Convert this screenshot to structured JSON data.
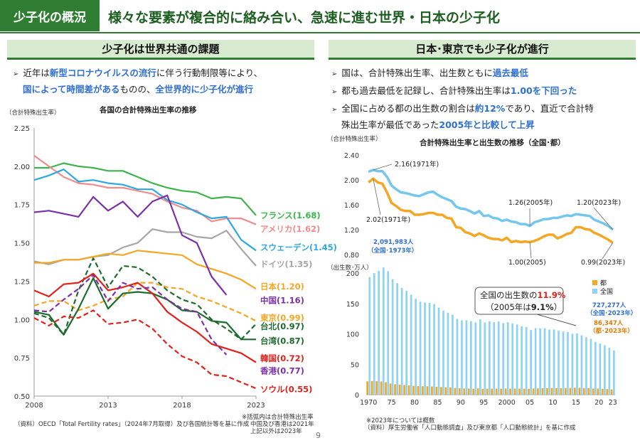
{
  "header": {
    "badge": "少子化の概況",
    "title": "様々な要素が複合的に絡み合い、急速に進む世界・日本の少子化"
  },
  "left": {
    "section_title": "少子化は世界共通の課題",
    "bullet_line1_pre": "近年は",
    "bullet_line1_hl": "新型コロナウイルスの流行",
    "bullet_line1_post": "に伴う行動制限等により、",
    "bullet_line2_hl1": "国によって時間差がある",
    "bullet_line2_mid": "ものの、",
    "bullet_line2_hl2": "全世界的に少子化が進行",
    "source": "（資料）OECD「Total Fertility rates」（2024年7月取得）及び各国統計等を基に作成",
    "note1": "※括弧内は合計特殊出生率",
    "note2": "中国及び香港は2021年",
    "note3": "上記以外は2023年"
  },
  "right": {
    "section_title": "日本･東京でも少子化が進行",
    "b1_pre": "国は、合計特殊出生率、出生数ともに",
    "b1_hl": "過去最低",
    "b2_pre": "都も過去最低を記録し、合計特殊出生率は",
    "b2_hl": "1.00を下回った",
    "b3_pre": "全国に占める都の出生数の割合は",
    "b3_hl": "約12%",
    "b3_post": "であり、直近で合計特",
    "b3_line2_pre": "殊出生率が最低であった",
    "b3_line2_hl": "2005年と比較して上昇",
    "source1": "※2023年については概数",
    "source2": "（資料）厚生労働省「人口動態調査」及び東京都「人口動態統計」を基に作成"
  },
  "page_number": "9",
  "chart_data": [
    {
      "type": "line",
      "title": "各国の合計特殊出生率の推移",
      "ylabel": "（合計特殊出生率）",
      "ylim": [
        0.5,
        2.25
      ],
      "yticks": [
        "0.50",
        "0.75",
        "1.00",
        "1.25",
        "1.50",
        "1.75",
        "2.00",
        "2.25"
      ],
      "xlim": [
        2008,
        2023
      ],
      "xticks": [
        "2008",
        "2013",
        "2018",
        "2023"
      ],
      "series": [
        {
          "name": "フランス",
          "label": "フランス(1.68)",
          "color": "#3cb44b",
          "dash": false,
          "x": [
            2008,
            2009,
            2010,
            2011,
            2012,
            2013,
            2014,
            2015,
            2016,
            2017,
            2018,
            2019,
            2020,
            2021,
            2022,
            2023
          ],
          "values": [
            1.99,
            1.99,
            2.02,
            2.0,
            1.99,
            1.97,
            1.97,
            1.93,
            1.89,
            1.86,
            1.84,
            1.83,
            1.79,
            1.8,
            1.79,
            1.68
          ]
        },
        {
          "name": "アメリカ",
          "label": "アメリカ(1.62)",
          "color": "#f08c8c",
          "dash": false,
          "x": [
            2008,
            2009,
            2010,
            2011,
            2012,
            2013,
            2014,
            2015,
            2016,
            2017,
            2018,
            2019,
            2020,
            2021,
            2022,
            2023
          ],
          "values": [
            2.07,
            2.0,
            1.93,
            1.89,
            1.88,
            1.86,
            1.86,
            1.84,
            1.82,
            1.77,
            1.73,
            1.71,
            1.64,
            1.66,
            1.66,
            1.62
          ]
        },
        {
          "name": "スウェーデン",
          "label": "スウェーデン(1.45)",
          "color": "#2ea8e0",
          "dash": false,
          "x": [
            2008,
            2009,
            2010,
            2011,
            2012,
            2013,
            2014,
            2015,
            2016,
            2017,
            2018,
            2019,
            2020,
            2021,
            2022,
            2023
          ],
          "values": [
            1.91,
            1.94,
            1.98,
            1.9,
            1.91,
            1.89,
            1.88,
            1.85,
            1.85,
            1.78,
            1.75,
            1.7,
            1.66,
            1.67,
            1.52,
            1.45
          ]
        },
        {
          "name": "ドイツ",
          "label": "ドイツ(1.35)",
          "color": "#a6a6a6",
          "dash": false,
          "x": [
            2008,
            2009,
            2010,
            2011,
            2012,
            2013,
            2014,
            2015,
            2016,
            2017,
            2018,
            2019,
            2020,
            2021,
            2022,
            2023
          ],
          "values": [
            1.38,
            1.36,
            1.39,
            1.39,
            1.41,
            1.42,
            1.47,
            1.5,
            1.59,
            1.57,
            1.57,
            1.54,
            1.53,
            1.58,
            1.46,
            1.35
          ]
        },
        {
          "name": "日本",
          "label": "日本(1.20)",
          "color": "#f5a623",
          "dash": false,
          "x": [
            2008,
            2009,
            2010,
            2011,
            2012,
            2013,
            2014,
            2015,
            2016,
            2017,
            2018,
            2019,
            2020,
            2021,
            2022,
            2023
          ],
          "values": [
            1.37,
            1.37,
            1.39,
            1.39,
            1.41,
            1.43,
            1.42,
            1.45,
            1.44,
            1.43,
            1.42,
            1.36,
            1.33,
            1.3,
            1.26,
            1.2
          ]
        },
        {
          "name": "中国",
          "label": "中国(1.16)",
          "color": "#7b2fa8",
          "dash": false,
          "x": [
            2008,
            2009,
            2010,
            2011,
            2012,
            2013,
            2014,
            2015,
            2016,
            2017,
            2018,
            2019,
            2020,
            2021
          ],
          "values": [
            1.7,
            1.71,
            1.69,
            1.67,
            1.8,
            1.71,
            1.77,
            1.67,
            1.77,
            1.81,
            1.55,
            1.5,
            1.28,
            1.16
          ]
        },
        {
          "name": "東京",
          "label": "東京(0.99)",
          "color": "#f5a623",
          "dash": true,
          "x": [
            2008,
            2009,
            2010,
            2011,
            2012,
            2013,
            2014,
            2015,
            2016,
            2017,
            2018,
            2019,
            2020,
            2021,
            2022,
            2023
          ],
          "values": [
            1.09,
            1.12,
            1.12,
            1.06,
            1.09,
            1.13,
            1.15,
            1.24,
            1.24,
            1.21,
            1.2,
            1.15,
            1.12,
            1.08,
            1.04,
            0.99
          ]
        },
        {
          "name": "台北",
          "label": "台北(0.97)",
          "color": "#1e6b2e",
          "dash": true,
          "x": [
            2008,
            2009,
            2010,
            2011,
            2012,
            2013,
            2014,
            2015,
            2016,
            2017,
            2018,
            2019,
            2020,
            2021,
            2022,
            2023
          ],
          "values": [
            1.04,
            1.01,
            0.9,
            1.19,
            1.4,
            1.21,
            1.35,
            1.34,
            1.28,
            1.19,
            1.13,
            1.1,
            1.0,
            0.94,
            0.87,
            0.97
          ]
        },
        {
          "name": "台湾",
          "label": "台湾(0.87)",
          "color": "#1e6b2e",
          "dash": false,
          "x": [
            2008,
            2009,
            2010,
            2011,
            2012,
            2013,
            2014,
            2015,
            2016,
            2017,
            2018,
            2019,
            2020,
            2021,
            2022,
            2023
          ],
          "values": [
            1.05,
            1.03,
            0.9,
            1.07,
            1.27,
            1.07,
            1.17,
            1.18,
            1.17,
            1.13,
            1.06,
            1.05,
            0.99,
            0.98,
            0.87,
            0.87
          ]
        },
        {
          "name": "韓国",
          "label": "韓国(0.72)",
          "color": "#e0221b",
          "dash": false,
          "x": [
            2008,
            2009,
            2010,
            2011,
            2012,
            2013,
            2014,
            2015,
            2016,
            2017,
            2018,
            2019,
            2020,
            2021,
            2022,
            2023
          ],
          "values": [
            1.19,
            1.15,
            1.23,
            1.24,
            1.3,
            1.19,
            1.21,
            1.24,
            1.17,
            1.05,
            0.98,
            0.92,
            0.84,
            0.81,
            0.78,
            0.72
          ]
        },
        {
          "name": "香港",
          "label": "香港(0.77)",
          "color": "#7b2fa8",
          "dash": true,
          "x": [
            2008,
            2009,
            2010,
            2011,
            2012,
            2013,
            2014,
            2015,
            2016,
            2017,
            2018,
            2019,
            2020,
            2021
          ],
          "values": [
            1.06,
            1.05,
            1.13,
            1.2,
            1.29,
            1.12,
            1.24,
            1.2,
            1.21,
            1.13,
            1.07,
            1.05,
            0.87,
            0.77
          ]
        },
        {
          "name": "ソウル",
          "label": "ソウル(0.55)",
          "color": "#e0221b",
          "dash": true,
          "x": [
            2008,
            2009,
            2010,
            2011,
            2012,
            2013,
            2014,
            2015,
            2016,
            2017,
            2018,
            2019,
            2020,
            2021,
            2022,
            2023
          ],
          "values": [
            1.01,
            0.96,
            1.02,
            1.01,
            1.06,
            0.97,
            0.98,
            1.0,
            0.94,
            0.84,
            0.76,
            0.72,
            0.64,
            0.63,
            0.59,
            0.55
          ]
        }
      ]
    },
    {
      "type": "line",
      "title": "合計特殊出生率と出生数の推移（全国･都）",
      "ylabel": "（合計特殊出生率）",
      "ylim": [
        0.8,
        2.4
      ],
      "yticks": [
        "0.80",
        "1.20",
        "1.60",
        "2.00",
        "2.40"
      ],
      "x_start": 1970,
      "x_end": 2023,
      "annotations": [
        "2.16(1971年)",
        "2.02(1971年)",
        "1.26(2005年)",
        "1.20(2023年)",
        "1.00(2005)",
        "0.99(2023年)"
      ],
      "series": [
        {
          "name": "全国",
          "color": "#74c7ec",
          "values": [
            2.13,
            2.16,
            2.14,
            2.14,
            2.05,
            1.91,
            1.85,
            1.8,
            1.79,
            1.77,
            1.75,
            1.74,
            1.77,
            1.8,
            1.81,
            1.76,
            1.72,
            1.69,
            1.66,
            1.57,
            1.54,
            1.53,
            1.5,
            1.46,
            1.5,
            1.42,
            1.43,
            1.39,
            1.38,
            1.34,
            1.36,
            1.33,
            1.32,
            1.29,
            1.29,
            1.26,
            1.32,
            1.34,
            1.37,
            1.37,
            1.39,
            1.39,
            1.41,
            1.43,
            1.42,
            1.45,
            1.44,
            1.43,
            1.42,
            1.36,
            1.33,
            1.3,
            1.26,
            1.2
          ]
        },
        {
          "name": "都",
          "color": "#f5a623",
          "values": [
            1.96,
            2.02,
            1.96,
            1.94,
            1.8,
            1.63,
            1.58,
            1.52,
            1.5,
            1.5,
            1.44,
            1.44,
            1.45,
            1.47,
            1.47,
            1.44,
            1.44,
            1.39,
            1.38,
            1.24,
            1.23,
            1.16,
            1.14,
            1.1,
            1.14,
            1.11,
            1.07,
            1.05,
            1.05,
            1.03,
            1.07,
            1.0,
            1.02,
            1.0,
            1.01,
            1.0,
            1.02,
            1.05,
            1.09,
            1.12,
            1.12,
            1.06,
            1.09,
            1.13,
            1.15,
            1.24,
            1.24,
            1.21,
            1.2,
            1.15,
            1.12,
            1.08,
            1.04,
            0.99
          ]
        }
      ]
    },
    {
      "type": "bar",
      "title": "出生数",
      "ylabel": "（出生数･万人）",
      "ylim": [
        0,
        200
      ],
      "yticks": [
        "0",
        "50",
        "100",
        "150",
        "200"
      ],
      "xticks": [
        "1970",
        "75",
        "80",
        "85",
        "90",
        "95",
        "2000",
        "05",
        "10",
        "15",
        "20",
        "23"
      ],
      "legend": [
        "都",
        "全国"
      ],
      "callout_title_pre": "全国の出生数の",
      "callout_title_hl": "11.9%",
      "callout_sub_pre": "（2005年は",
      "callout_sub_hl": "9.1%",
      "callout_sub_post": "）",
      "label_top1": "2,091,983人",
      "label_top2": "（全国･1973年）",
      "label_zenkoku1": "727,277人",
      "label_zenkoku2": "（全国･2023年）",
      "label_to1": "86,347人",
      "label_to2": "（都･2023年）",
      "series": [
        {
          "name": "全国",
          "color": "#8fd3f4",
          "values": [
            193.4,
            200.1,
            203.9,
            209.2,
            203.0,
            190.1,
            183.3,
            175.5,
            170.9,
            164.3,
            157.7,
            152.9,
            151.5,
            150.9,
            149.0,
            143.2,
            138.3,
            134.7,
            131.4,
            124.7,
            122.2,
            122.3,
            120.9,
            118.8,
            123.8,
            118.7,
            120.7,
            119.2,
            120.3,
            117.8,
            119.1,
            117.1,
            115.4,
            112.4,
            111.1,
            106.3,
            109.3,
            109.0,
            109.1,
            107.0,
            107.1,
            105.1,
            103.7,
            103.0,
            100.4,
            100.6,
            97.7,
            94.6,
            91.8,
            86.5,
            84.1,
            81.2,
            77.1,
            72.7
          ]
        },
        {
          "name": "都",
          "color": "#f5a623",
          "values": [
            22.0,
            22.5,
            22.1,
            21.9,
            20.5,
            18.2,
            17.2,
            16.4,
            15.8,
            15.2,
            14.5,
            14.0,
            13.8,
            13.7,
            13.5,
            13.0,
            12.5,
            12.2,
            12.0,
            11.0,
            10.4,
            10.2,
            10.0,
            9.7,
            10.2,
            9.6,
            9.8,
            9.8,
            9.9,
            9.7,
            10.0,
            9.8,
            9.9,
            9.8,
            9.8,
            9.6,
            10.1,
            10.3,
            10.6,
            10.7,
            10.9,
            10.6,
            10.7,
            10.9,
            11.0,
            11.3,
            11.2,
            10.8,
            10.7,
            10.1,
            9.9,
            9.6,
            9.1,
            8.6
          ]
        }
      ]
    }
  ]
}
